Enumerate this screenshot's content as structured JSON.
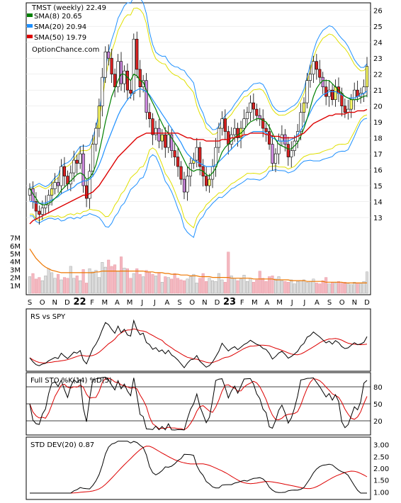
{
  "chart_data": {
    "type": "stock-technical",
    "price_panel": {
      "title": "TMST (weekly) 22.49",
      "watermark": "OptionChance.com",
      "legend": [
        {
          "label": "SMA(8) 20.65",
          "color": "#008000"
        },
        {
          "label": "SMA(20) 20.94",
          "color": "#1e90ff"
        },
        {
          "label": "SMA(50) 19.79",
          "color": "#dd0000"
        }
      ],
      "y_ticks": [
        "26",
        "25",
        "24",
        "23",
        "22",
        "21",
        "20",
        "19",
        "18",
        "17",
        "16",
        "15",
        "14",
        "13"
      ],
      "ylim": [
        12.2,
        26.3
      ],
      "close": [
        14.8,
        14.0,
        13.4,
        13.2,
        13.6,
        13.8,
        14.4,
        14.8,
        15.2,
        15.0,
        16.2,
        15.6,
        15.1,
        15.8,
        16.6,
        16.4,
        17.0,
        15.0,
        14.2,
        15.9,
        17.6,
        18.6,
        20.0,
        21.8,
        23.4,
        23.0,
        22.0,
        21.2,
        22.8,
        21.4,
        22.2,
        21.0,
        20.8,
        24.2,
        22.3,
        21.2,
        21.6,
        19.6,
        19.2,
        18.2,
        18.6,
        17.8,
        18.2,
        17.4,
        18.2,
        17.2,
        16.8,
        16.2,
        15.4,
        14.6,
        15.6,
        16.4,
        16.6,
        17.4,
        16.2,
        15.6,
        15.0,
        15.4,
        16.2,
        17.4,
        18.6,
        19.2,
        18.4,
        17.6,
        18.2,
        18.6,
        18.0,
        18.6,
        19.2,
        19.6,
        20.2,
        19.8,
        19.4,
        19.2,
        18.6,
        18.4,
        17.6,
        16.4,
        17.0,
        17.8,
        18.2,
        17.6,
        16.8,
        17.2,
        17.8,
        18.4,
        19.6,
        20.2,
        21.6,
        22.0,
        22.8,
        22.3,
        21.8,
        21.2,
        20.6,
        21.0,
        20.4,
        21.2,
        20.8,
        20.0,
        19.6,
        19.8,
        20.4,
        21.0,
        20.6,
        20.8,
        21.2,
        22.49
      ],
      "sma8": [
        14.8,
        14.5,
        14.2,
        13.9,
        13.8,
        13.8,
        13.9,
        14.0,
        14.2,
        14.4,
        14.7,
        14.9,
        15.1,
        15.3,
        15.5,
        15.7,
        15.8,
        15.7,
        15.4,
        15.5,
        15.8,
        16.3,
        17.1,
        18.0,
        19.0,
        19.8,
        20.6,
        21.1,
        21.6,
        22.0,
        22.0,
        21.8,
        21.6,
        22.0,
        21.9,
        21.6,
        21.5,
        21.0,
        20.6,
        20.2,
        19.8,
        19.3,
        18.9,
        18.5,
        18.3,
        18.0,
        17.7,
        17.4,
        17.0,
        16.6,
        16.2,
        16.0,
        15.9,
        16.0,
        16.0,
        15.9,
        15.7,
        15.6,
        15.8,
        16.1,
        16.6,
        17.1,
        17.4,
        17.6,
        17.8,
        18.0,
        18.2,
        18.3,
        18.5,
        18.8,
        19.0,
        19.1,
        19.2,
        19.2,
        19.1,
        19.0,
        18.7,
        18.3,
        17.9,
        17.6,
        17.5,
        17.4,
        17.3,
        17.3,
        17.5,
        17.7,
        18.1,
        18.6,
        19.2,
        19.9,
        20.6,
        21.1,
        21.4,
        21.6,
        21.6,
        21.6,
        21.4,
        21.2,
        21.0,
        20.8,
        20.6,
        20.5,
        20.4,
        20.4,
        20.4,
        20.5,
        20.6,
        20.65
      ],
      "sma20": [
        14.0,
        14.0,
        13.9,
        13.9,
        13.9,
        13.9,
        14.0,
        14.1,
        14.2,
        14.3,
        14.5,
        14.6,
        14.7,
        14.8,
        14.9,
        15.1,
        15.2,
        15.3,
        15.3,
        15.4,
        15.6,
        15.9,
        16.3,
        16.8,
        17.4,
        17.9,
        18.4,
        18.9,
        19.4,
        19.8,
        20.1,
        20.4,
        20.6,
        20.9,
        21.0,
        21.1,
        21.0,
        20.9,
        20.7,
        20.4,
        20.1,
        19.8,
        19.5,
        19.2,
        18.9,
        18.6,
        18.3,
        18.0,
        17.7,
        17.3,
        17.0,
        16.8,
        16.6,
        16.5,
        16.4,
        16.3,
        16.2,
        16.2,
        16.2,
        16.3,
        16.5,
        16.7,
        16.9,
        17.1,
        17.3,
        17.5,
        17.7,
        17.9,
        18.1,
        18.2,
        18.3,
        18.4,
        18.4,
        18.4,
        18.4,
        18.3,
        18.2,
        18.0,
        17.9,
        17.8,
        17.8,
        17.8,
        17.8,
        17.9,
        18.0,
        18.2,
        18.5,
        18.8,
        19.2,
        19.6,
        20.0,
        20.3,
        20.5,
        20.7,
        20.8,
        20.9,
        20.9,
        20.9,
        20.8,
        20.7,
        20.6,
        20.5,
        20.5,
        20.5,
        20.6,
        20.7,
        20.8,
        20.94
      ],
      "sma50": [
        12.6,
        12.8,
        12.9,
        13.0,
        13.1,
        13.2,
        13.3,
        13.4,
        13.5,
        13.6,
        13.7,
        13.8,
        13.9,
        14.0,
        14.1,
        14.2,
        14.3,
        14.4,
        14.4,
        14.5,
        14.6,
        14.8,
        15.0,
        15.3,
        15.6,
        15.9,
        16.2,
        16.5,
        16.8,
        17.0,
        17.2,
        17.4,
        17.6,
        17.8,
        18.0,
        18.1,
        18.2,
        18.3,
        18.3,
        18.3,
        18.3,
        18.3,
        18.3,
        18.3,
        18.3,
        18.3,
        18.3,
        18.3,
        18.2,
        18.1,
        18.0,
        18.0,
        17.9,
        17.9,
        17.9,
        17.9,
        17.8,
        17.8,
        17.8,
        17.8,
        17.8,
        17.9,
        17.9,
        17.9,
        18.0,
        18.0,
        18.1,
        18.1,
        18.2,
        18.2,
        18.3,
        18.3,
        18.3,
        18.3,
        18.3,
        18.2,
        18.2,
        18.1,
        18.1,
        18.1,
        18.0,
        18.0,
        18.0,
        18.0,
        18.0,
        18.1,
        18.2,
        18.3,
        18.5,
        18.7,
        18.9,
        19.0,
        19.1,
        19.2,
        19.3,
        19.4,
        19.4,
        19.5,
        19.5,
        19.5,
        19.5,
        19.6,
        19.6,
        19.6,
        19.7,
        19.7,
        19.7,
        19.79
      ]
    },
    "volume_panel": {
      "y_ticks": [
        "7M",
        "6M",
        "5M",
        "4M",
        "3M",
        "2M",
        "1M"
      ],
      "ylim": [
        0,
        7.5
      ],
      "x_labels": [
        "S",
        "O",
        "N",
        "D",
        "22",
        "F",
        "M",
        "A",
        "M",
        "J",
        "J",
        "A",
        "S",
        "O",
        "N",
        "D",
        "23",
        "F",
        "M",
        "A",
        "M",
        "J",
        "J",
        "A",
        "S",
        "O",
        "N",
        "D"
      ],
      "volume_m": [
        2.1,
        2.5,
        1.8,
        2.0,
        1.6,
        2.2,
        3.1,
        2.6,
        1.9,
        2.4,
        1.7,
        2.0,
        1.9,
        3.4,
        1.9,
        2.2,
        1.6,
        3.0,
        1.3,
        3.1,
        2.7,
        2.9,
        2.0,
        3.9,
        3.3,
        4.2,
        3.4,
        3.6,
        2.8,
        4.6,
        3.2,
        3.1,
        1.9,
        2.5,
        3.1,
        2.4,
        2.1,
        2.9,
        2.7,
        2.4,
        2.2,
        2.6,
        1.4,
        2.1,
        2.0,
        1.8,
        2.5,
        1.9,
        1.7,
        1.6,
        1.8,
        2.1,
        2.4,
        1.3,
        1.9,
        2.5,
        1.5,
        1.9,
        1.6,
        1.5,
        2.5,
        1.7,
        1.4,
        5.2,
        2.2,
        1.9,
        1.6,
        1.8,
        2.3,
        1.5,
        1.9,
        1.4,
        1.7,
        2.8,
        1.9,
        1.5,
        2.1,
        2.2,
        1.8,
        2.1,
        1.6,
        1.5,
        1.4,
        1.7,
        1.2,
        1.5,
        1.6,
        1.7,
        1.4,
        1.5,
        1.8,
        1.3,
        1.2,
        1.6,
        2.0,
        1.2,
        1.4,
        1.3,
        1.5,
        1.3,
        1.4,
        1.2,
        1.1,
        1.4,
        1.3,
        1.2,
        1.5,
        2.7
      ],
      "avg_m": [
        5.6,
        5.0,
        4.4,
        4.0,
        3.6,
        3.3,
        3.1,
        2.9,
        2.8,
        2.7,
        2.6,
        2.6,
        2.6,
        2.6,
        2.6,
        2.6,
        2.6,
        2.6,
        2.6,
        2.6,
        2.6,
        2.7,
        2.7,
        2.8,
        2.8,
        2.8,
        2.8,
        2.8,
        2.8,
        2.8,
        2.8,
        2.8,
        2.8,
        2.8,
        2.8,
        2.8,
        2.8,
        2.7,
        2.7,
        2.7,
        2.6,
        2.6,
        2.6,
        2.5,
        2.5,
        2.4,
        2.4,
        2.4,
        2.3,
        2.3,
        2.3,
        2.2,
        2.2,
        2.2,
        2.1,
        2.1,
        2.1,
        2.1,
        2.0,
        2.0,
        2.0,
        2.0,
        2.0,
        2.0,
        1.9,
        1.9,
        1.9,
        1.9,
        1.9,
        1.9,
        1.9,
        1.8,
        1.8,
        1.8,
        1.8,
        1.8,
        1.8,
        1.8,
        1.7,
        1.7,
        1.7,
        1.7,
        1.7,
        1.6,
        1.6,
        1.6,
        1.6,
        1.6,
        1.5,
        1.5,
        1.5,
        1.5,
        1.5,
        1.5,
        1.4,
        1.4,
        1.4,
        1.4,
        1.4,
        1.4,
        1.3,
        1.3,
        1.3,
        1.3,
        1.3,
        1.3,
        1.3,
        1.3
      ]
    },
    "rs_panel": {
      "label": "RS vs SPY"
    },
    "sto_panel": {
      "label": "Full STO %K(14) %D(5)",
      "y_ticks": [
        "80",
        "50",
        "20"
      ],
      "ylim": [
        0,
        100
      ]
    },
    "std_panel": {
      "label": "STD DEV(20) 0.87",
      "y_ticks": [
        "3.00",
        "2.50",
        "2.00",
        "1.50",
        "1.00"
      ],
      "ylim": [
        0.8,
        3.2
      ]
    }
  }
}
